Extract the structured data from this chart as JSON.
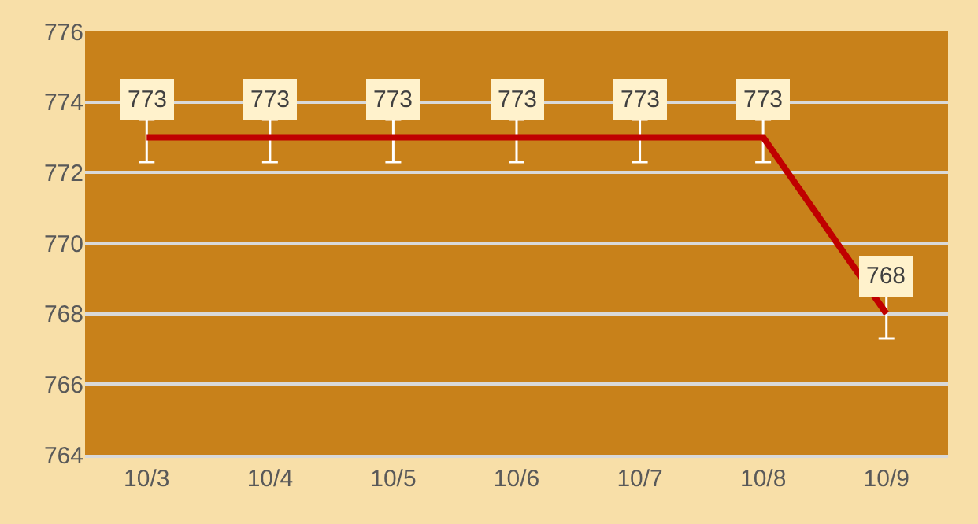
{
  "chart_data": {
    "type": "line",
    "categories": [
      "10/3",
      "10/4",
      "10/5",
      "10/6",
      "10/7",
      "10/8",
      "10/9"
    ],
    "series": [
      {
        "color": "#c00000",
        "values": [
          773,
          773,
          773,
          773,
          773,
          773,
          768
        ],
        "errors": [
          [
            772.3,
            773.5
          ],
          [
            772.3,
            773.5
          ],
          [
            772.3,
            773.5
          ],
          [
            772.3,
            773.5
          ],
          [
            772.3,
            773.5
          ],
          [
            772.3,
            773.5
          ],
          [
            767.3,
            768.5
          ]
        ]
      }
    ],
    "ylim": [
      764,
      776
    ],
    "yticks": [
      764,
      766,
      768,
      770,
      772,
      774,
      776
    ],
    "grid": "y",
    "legend": false,
    "marker": "none",
    "line_style": "solid",
    "data_labels": true
  }
}
